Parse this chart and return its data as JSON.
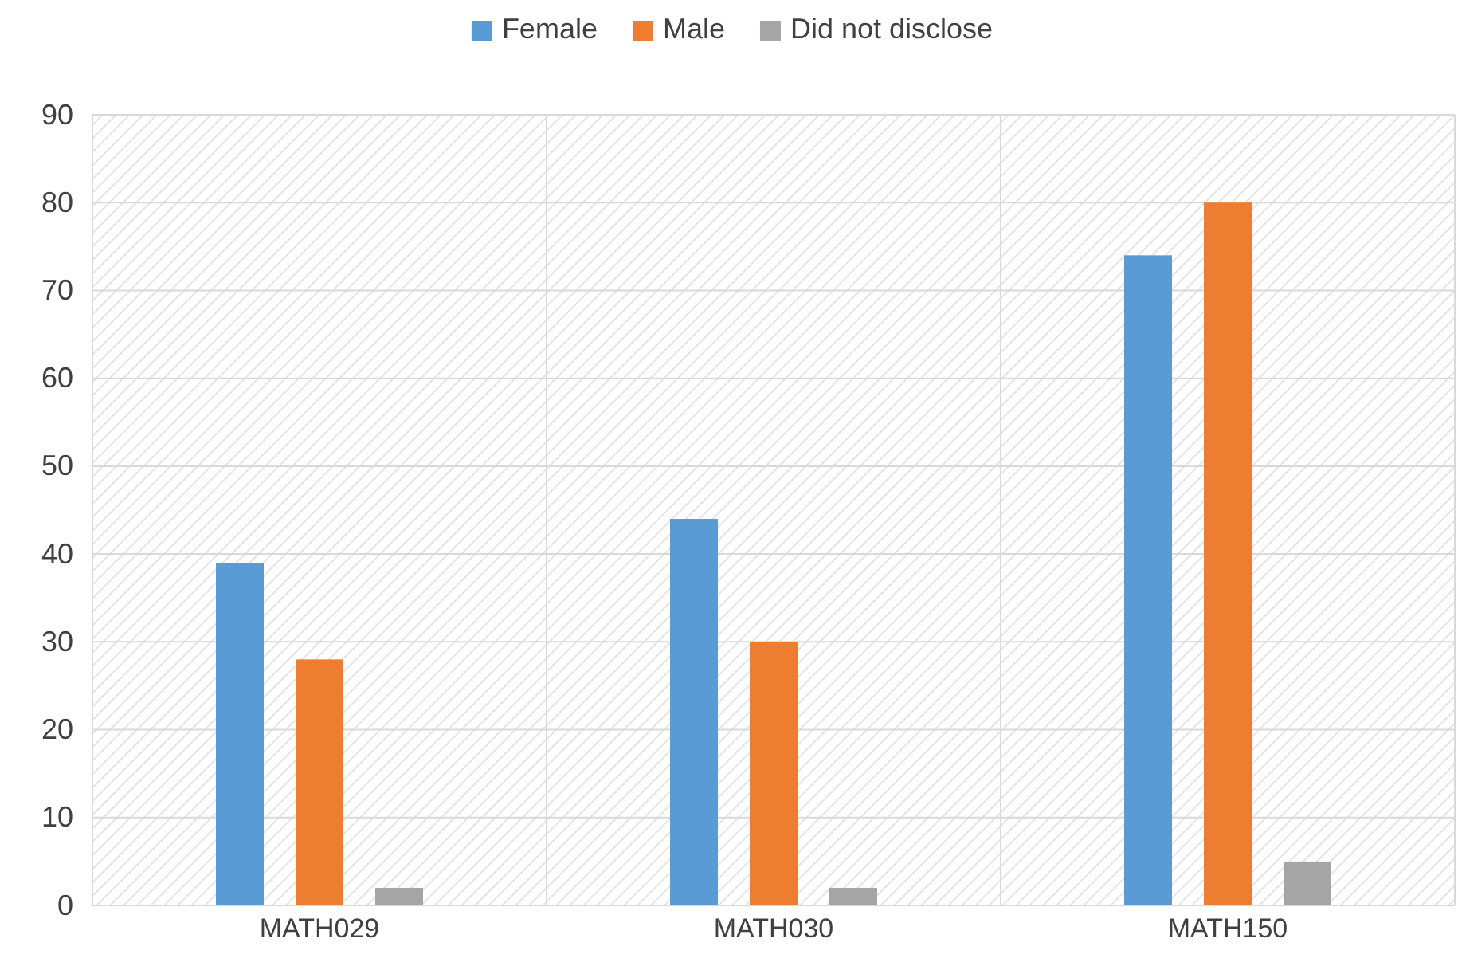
{
  "chart_data": {
    "type": "bar",
    "categories": [
      "MATH029",
      "MATH030",
      "MATH150"
    ],
    "series": [
      {
        "name": "Female",
        "color": "#5b9bd5",
        "values": [
          39,
          44,
          74
        ]
      },
      {
        "name": "Male",
        "color": "#ed7d31",
        "values": [
          28,
          30,
          80
        ]
      },
      {
        "name": "Did not disclose",
        "color": "#a5a5a5",
        "values": [
          2,
          2,
          5
        ]
      }
    ],
    "ylim": [
      0,
      90
    ],
    "yticks": [
      0,
      10,
      20,
      30,
      40,
      50,
      60,
      70,
      80,
      90
    ],
    "grid": true,
    "legend": "top"
  }
}
